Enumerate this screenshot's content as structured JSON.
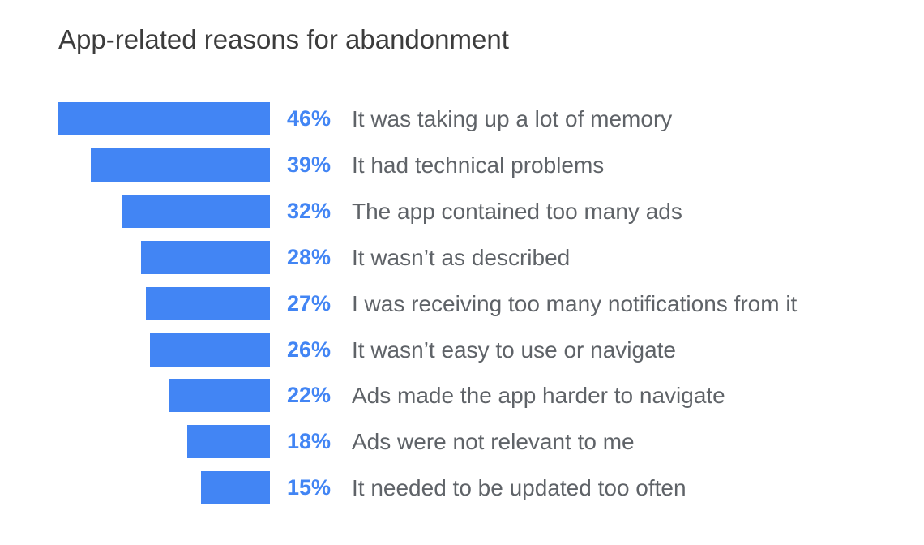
{
  "title": "App-related reasons for abandonment",
  "colors": {
    "bar": "#4285f4",
    "percent": "#4285f4",
    "label": "#5f6368",
    "title": "#3c3c3c"
  },
  "chart_data": {
    "type": "bar",
    "orientation": "horizontal",
    "title": "App-related reasons for abandonment",
    "xlabel": "",
    "ylabel": "",
    "unit": "%",
    "grid": false,
    "legend": false,
    "xlim": [
      0,
      46
    ],
    "categories": [
      "It was taking up a lot of memory",
      "It had technical problems",
      "The app contained too many ads",
      "It wasn’t as described",
      "I was receiving too many notifications from it",
      "It wasn’t easy to use or navigate",
      "Ads made the app harder to navigate",
      "Ads were not relevant to me",
      "It needed to be updated too often"
    ],
    "values": [
      46,
      39,
      32,
      28,
      27,
      26,
      22,
      18,
      15
    ],
    "value_labels": [
      "46%",
      "39%",
      "32%",
      "28%",
      "27%",
      "26%",
      "22%",
      "18%",
      "15%"
    ]
  }
}
